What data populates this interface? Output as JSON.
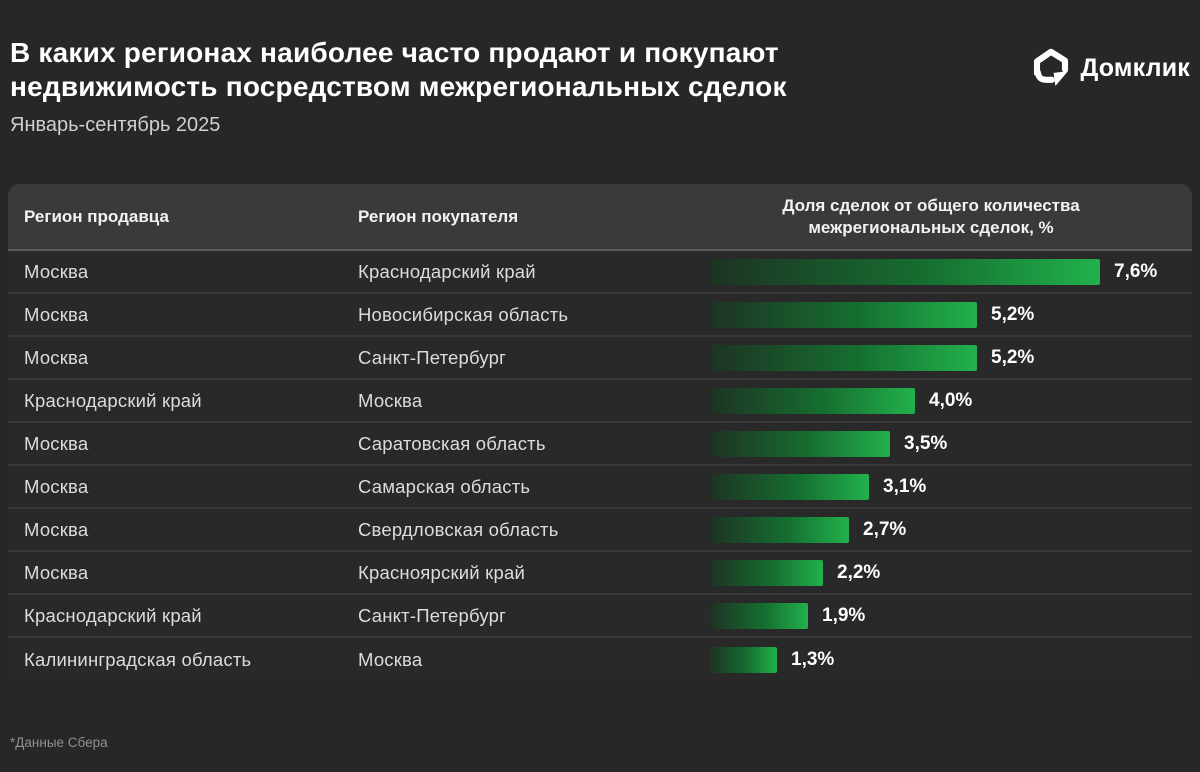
{
  "header": {
    "title_line1": "В каких регионах наиболее часто продают и покупают",
    "title_line2": "недвижимость посредством межрегиональных сделок",
    "subtitle": "Январь-сентябрь 2025",
    "logo_text": "Домклик"
  },
  "table": {
    "columns": {
      "seller": "Регион продавца",
      "buyer": "Регион покупателя",
      "share": "Доля сделок от общего количества\nмежрегиональных сделок, %"
    },
    "rows": [
      {
        "seller": "Москва",
        "buyer": "Краснодарский край",
        "value": 7.6,
        "label": "7,6%"
      },
      {
        "seller": "Москва",
        "buyer": "Новосибирская область",
        "value": 5.2,
        "label": "5,2%"
      },
      {
        "seller": "Москва",
        "buyer": "Санкт-Петербург",
        "value": 5.2,
        "label": "5,2%"
      },
      {
        "seller": "Краснодарский край",
        "buyer": "Москва",
        "value": 4.0,
        "label": "4,0%"
      },
      {
        "seller": "Москва",
        "buyer": "Саратовская область",
        "value": 3.5,
        "label": "3,5%"
      },
      {
        "seller": "Москва",
        "buyer": "Самарская область",
        "value": 3.1,
        "label": "3,1%"
      },
      {
        "seller": "Москва",
        "buyer": "Свердловская область",
        "value": 2.7,
        "label": "2,7%"
      },
      {
        "seller": "Москва",
        "buyer": "Красноярский край",
        "value": 2.2,
        "label": "2,2%"
      },
      {
        "seller": "Краснодарский край",
        "buyer": "Санкт-Петербург",
        "value": 1.9,
        "label": "1,9%"
      },
      {
        "seller": "Калининградская область",
        "buyer": "Москва",
        "value": 1.3,
        "label": "1,3%"
      }
    ]
  },
  "footer": {
    "note": "*Данные Сбера"
  },
  "colors": {
    "background": "#272727",
    "header_row": "#3a3a3a",
    "bar_gradient_start": "#1e3323",
    "bar_gradient_end": "#22b14c",
    "text_primary": "#ffffff",
    "text_secondary": "#dcdcdc",
    "footnote": "#909090"
  },
  "chart_data": {
    "type": "bar",
    "title": "В каких регионах наиболее часто продают и покупают недвижимость посредством межрегиональных сделок",
    "subtitle": "Январь-сентябрь 2025",
    "xlabel": "Доля сделок от общего количества межрегиональных сделок, %",
    "ylabel": "Регион продавца → Регион покупателя",
    "xlim": [
      0,
      7.6
    ],
    "grid": false,
    "legend": "none",
    "orientation": "horizontal",
    "categories": [
      "Москва → Краснодарский край",
      "Москва → Новосибирская область",
      "Москва → Санкт-Петербург",
      "Краснодарский край → Москва",
      "Москва → Саратовская область",
      "Москва → Самарская область",
      "Москва → Свердловская область",
      "Москва → Красноярский край",
      "Краснодарский край → Санкт-Петербург",
      "Калининградская область → Москва"
    ],
    "values": [
      7.6,
      5.2,
      5.2,
      4.0,
      3.5,
      3.1,
      2.7,
      2.2,
      1.9,
      1.3
    ],
    "source": "*Данные Сбера"
  }
}
